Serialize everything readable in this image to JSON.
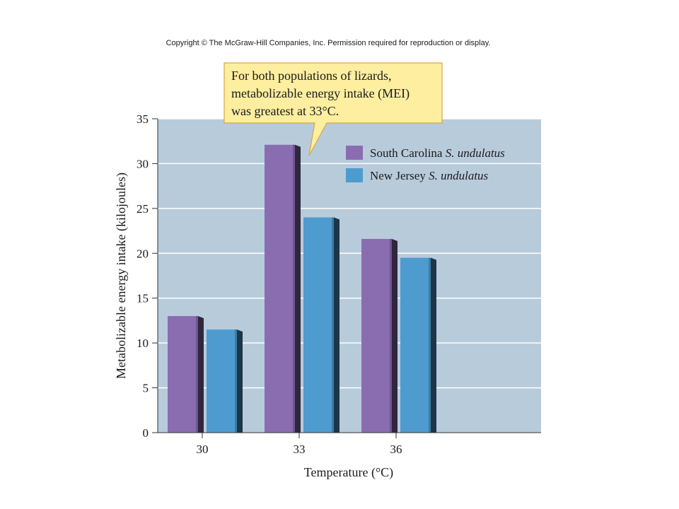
{
  "copyright": "Copyright © The McGraw-Hill Companies, Inc. Permission required for reproduction or display.",
  "callout": {
    "lines": [
      "For both populations of lizards,",
      "metabolizable energy intake (MEI)",
      "was greatest at 33°C."
    ]
  },
  "chart_data": {
    "type": "bar",
    "categories": [
      "30",
      "33",
      "36"
    ],
    "series": [
      {
        "name": "South Carolina",
        "species": "S. undulatus",
        "values": [
          13,
          32.1,
          21.6
        ],
        "color": "#8a6db1"
      },
      {
        "name": "New Jersey",
        "species": "S. undulatus",
        "values": [
          11.5,
          24,
          19.5
        ],
        "color": "#4e9bd0"
      }
    ],
    "xlabel": "Temperature (°C)",
    "ylabel": "Metabolizable energy intake (kilojoules)",
    "ylim": [
      0,
      35
    ],
    "yticks": [
      0,
      5,
      10,
      15,
      20,
      25,
      30,
      35
    ],
    "grid": true,
    "legend": "top-right",
    "plot_background": "#b8cbdb"
  }
}
